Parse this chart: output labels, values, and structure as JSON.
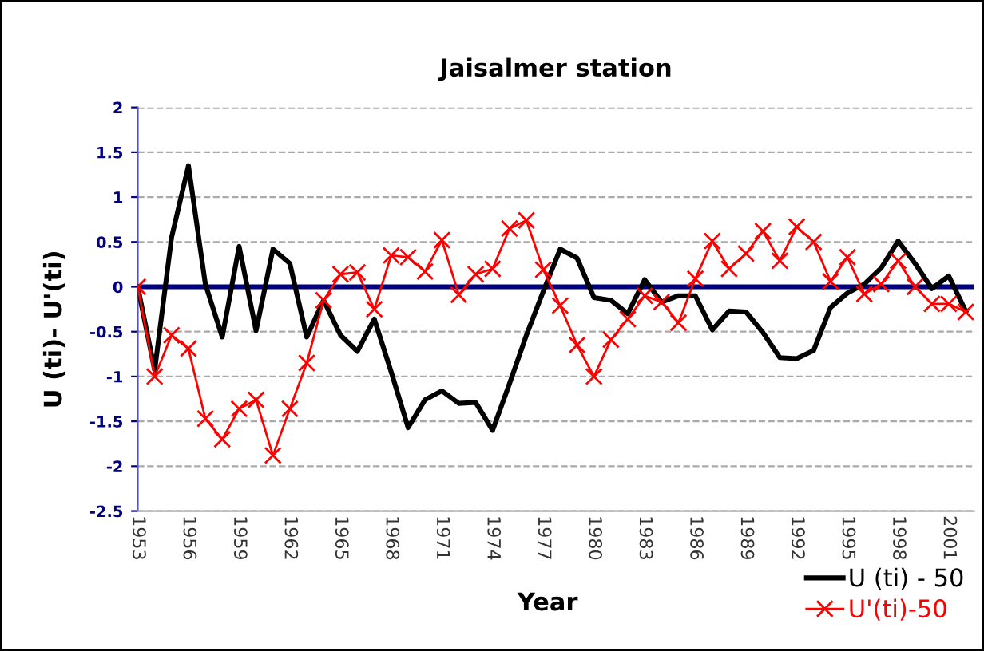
{
  "chart_data": {
    "type": "line",
    "title": "Jaisalmer station",
    "xlabel": "Year",
    "ylabel": "U (ti)- U'(ti)",
    "x": [
      1953,
      1954,
      1955,
      1956,
      1957,
      1958,
      1959,
      1960,
      1961,
      1962,
      1963,
      1964,
      1965,
      1966,
      1967,
      1968,
      1969,
      1970,
      1971,
      1972,
      1973,
      1974,
      1975,
      1976,
      1977,
      1978,
      1979,
      1980,
      1981,
      1982,
      1983,
      1984,
      1985,
      1986,
      1987,
      1988,
      1989,
      1990,
      1991,
      1992,
      1993,
      1994,
      1995,
      1996,
      1997,
      1998,
      1999,
      2000,
      2001,
      2002
    ],
    "series": [
      {
        "name": "U (ti) - 50",
        "color": "#000000",
        "marker": "none",
        "values": [
          0,
          -0.93,
          0.55,
          1.35,
          0.03,
          -0.56,
          0.45,
          -0.49,
          0.42,
          0.26,
          -0.56,
          -0.15,
          -0.54,
          -0.72,
          -0.36,
          -0.95,
          -1.57,
          -1.26,
          -1.16,
          -1.3,
          -1.29,
          -1.6,
          -1.08,
          -0.54,
          -0.05,
          0.42,
          0.32,
          -0.12,
          -0.15,
          -0.3,
          0.08,
          -0.17,
          -0.1,
          -0.1,
          -0.48,
          -0.27,
          -0.28,
          -0.51,
          -0.79,
          -0.8,
          -0.71,
          -0.23,
          -0.07,
          0.03,
          0.21,
          0.51,
          0.26,
          -0.02,
          0.12,
          -0.27
        ]
      },
      {
        "name": "U'(ti)-50",
        "color": "#ff0000",
        "marker": "cross",
        "values": [
          0,
          -1.0,
          -0.54,
          -0.69,
          -1.47,
          -1.7,
          -1.36,
          -1.26,
          -1.88,
          -1.36,
          -0.85,
          -0.15,
          0.14,
          0.16,
          -0.25,
          0.35,
          0.33,
          0.17,
          0.52,
          -0.09,
          0.14,
          0.2,
          0.65,
          0.74,
          0.19,
          -0.21,
          -0.65,
          -1.0,
          -0.59,
          -0.36,
          -0.1,
          -0.17,
          -0.4,
          0.09,
          0.51,
          0.2,
          0.37,
          0.62,
          0.29,
          0.67,
          0.5,
          0.06,
          0.33,
          -0.08,
          0.03,
          0.29,
          0.0,
          -0.19,
          -0.19,
          -0.28
        ]
      }
    ],
    "xlim": [
      1953,
      2002.5
    ],
    "xticks": [
      1953,
      1956,
      1959,
      1962,
      1965,
      1968,
      1971,
      1974,
      1977,
      1980,
      1983,
      1986,
      1989,
      1992,
      1995,
      1998,
      2001
    ],
    "ylim": [
      -2.5,
      2
    ],
    "yticks": [
      -2.5,
      -2,
      -1.5,
      -1,
      -0.5,
      0,
      0.5,
      1,
      1.5,
      2
    ],
    "ref_lines": [
      {
        "axis": "y",
        "value": 0,
        "color": "#000080"
      }
    ],
    "grid": "y",
    "legend": "bottom right"
  }
}
